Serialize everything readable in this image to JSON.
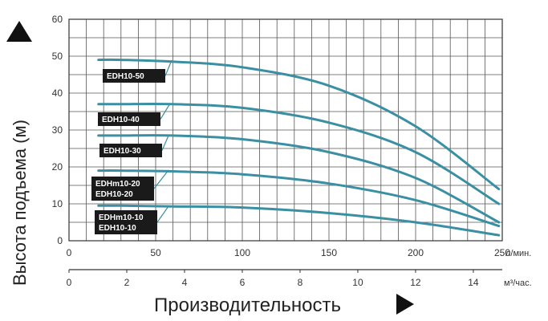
{
  "chart_data": {
    "type": "line",
    "xlabel": "Производительность",
    "ylabel": "Высота подъема (м)",
    "x_unit_top": "л/мин.",
    "x_unit_bottom": "м³/час.",
    "x_ticks_top": [
      "0",
      "50",
      "100",
      "150",
      "200",
      "250"
    ],
    "x_ticks_bottom": [
      "0",
      "2",
      "4",
      "6",
      "8",
      "10",
      "12",
      "14"
    ],
    "y_ticks": [
      "0",
      "10",
      "20",
      "30",
      "40",
      "50",
      "60"
    ],
    "xlim": [
      0,
      250
    ],
    "ylim": [
      0,
      60
    ],
    "grid": true,
    "colors": {
      "curve": "#3a8fa3",
      "label_bg": "#1a1a1a",
      "grid": "#555555"
    },
    "series": [
      {
        "name": "EDH10-50",
        "x": [
          17,
          30,
          60,
          100,
          150,
          200,
          248
        ],
        "y": [
          49,
          49,
          48.5,
          47,
          42,
          31,
          14
        ]
      },
      {
        "name": "EDH10-40",
        "x": [
          17,
          30,
          60,
          100,
          150,
          200,
          248
        ],
        "y": [
          37,
          37,
          37,
          36,
          32,
          24,
          10
        ]
      },
      {
        "name": "EDH10-30",
        "x": [
          17,
          30,
          60,
          100,
          150,
          200,
          248
        ],
        "y": [
          28.5,
          28.5,
          28.5,
          27.5,
          24,
          17,
          5
        ]
      },
      {
        "name": "EDHm10-20 / EDH10-20",
        "x": [
          17,
          30,
          60,
          100,
          150,
          200,
          248
        ],
        "y": [
          19,
          19,
          18.8,
          18,
          15.5,
          11,
          4
        ]
      },
      {
        "name": "EDHm10-10 / EDH10-10",
        "x": [
          17,
          30,
          60,
          100,
          150,
          200,
          248
        ],
        "y": [
          9.5,
          9.5,
          9.3,
          9,
          7.5,
          5,
          1.5
        ]
      }
    ],
    "labels": [
      {
        "series": 0,
        "lines": [
          "EDH10-50"
        ]
      },
      {
        "series": 1,
        "lines": [
          "EDH10-40"
        ]
      },
      {
        "series": 2,
        "lines": [
          "EDH10-30"
        ]
      },
      {
        "series": 3,
        "lines": [
          "EDHm10-20",
          "EDH10-20"
        ]
      },
      {
        "series": 4,
        "lines": [
          "EDHm10-10",
          "EDH10-10"
        ]
      }
    ]
  }
}
